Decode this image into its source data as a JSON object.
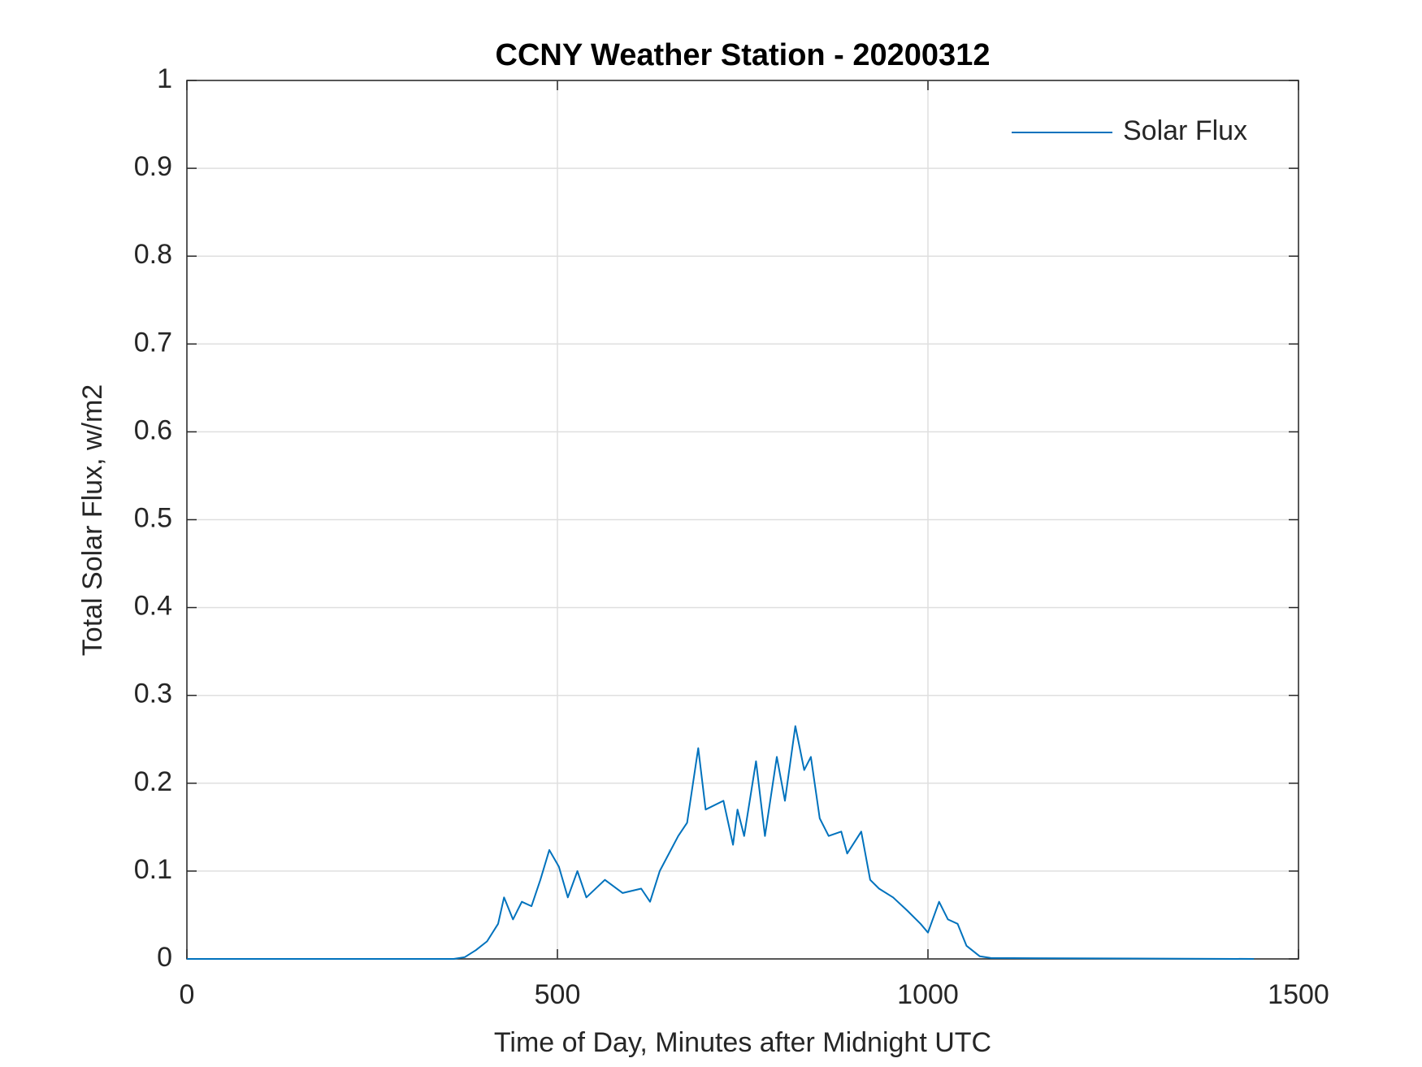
{
  "chart_data": {
    "type": "line",
    "title": "CCNY Weather Station - 20200312",
    "x_label": "Time of Day, Minutes after Midnight UTC",
    "y_label": "Total Solar Flux, w/m2",
    "x": [
      0,
      360,
      375,
      390,
      405,
      420,
      428,
      440,
      452,
      465,
      477,
      489,
      502,
      514,
      527,
      539,
      564,
      588,
      613,
      625,
      638,
      663,
      675,
      690,
      700,
      724,
      737,
      743,
      752,
      768,
      780,
      796,
      807,
      821,
      833,
      842,
      854,
      866,
      883,
      891,
      910,
      922,
      934,
      953,
      972,
      990,
      1000,
      1015,
      1027,
      1040,
      1052,
      1070,
      1085,
      1440
    ],
    "series": [
      {
        "name": "Solar Flux",
        "color": "#0072bd",
        "values": [
          0,
          0,
          0.002,
          0.01,
          0.02,
          0.04,
          0.07,
          0.045,
          0.065,
          0.06,
          0.09,
          0.124,
          0.105,
          0.07,
          0.1,
          0.07,
          0.09,
          0.075,
          0.08,
          0.065,
          0.1,
          0.14,
          0.155,
          0.24,
          0.17,
          0.18,
          0.13,
          0.17,
          0.14,
          0.225,
          0.14,
          0.23,
          0.18,
          0.265,
          0.215,
          0.23,
          0.16,
          0.14,
          0.145,
          0.12,
          0.145,
          0.09,
          0.08,
          0.07,
          0.055,
          0.04,
          0.03,
          0.065,
          0.045,
          0.04,
          0.015,
          0.003,
          0.001,
          0
        ]
      }
    ],
    "xlim": [
      0,
      1500
    ],
    "xticks": [
      0,
      500,
      1000,
      1500
    ],
    "ylim": [
      0,
      1
    ],
    "yticks": [
      0,
      0.1,
      0.2,
      0.3,
      0.4,
      0.5,
      0.6,
      0.7,
      0.8,
      0.9,
      1
    ],
    "grid": true,
    "legend": "upper-right"
  }
}
